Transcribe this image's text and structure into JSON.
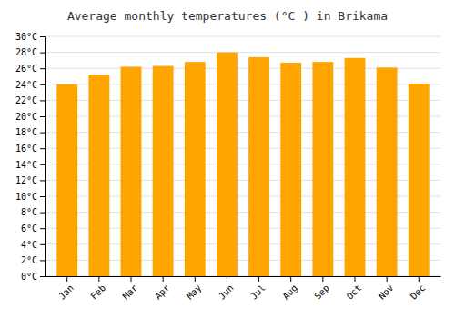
{
  "chart_data": {
    "type": "bar",
    "title": "Average monthly temperatures (°C ) in Brikama",
    "categories": [
      "Jan",
      "Feb",
      "Mar",
      "Apr",
      "May",
      "Jun",
      "Jul",
      "Aug",
      "Sep",
      "Oct",
      "Nov",
      "Dec"
    ],
    "values": [
      24.0,
      25.2,
      26.2,
      26.3,
      26.8,
      28.0,
      27.4,
      26.7,
      26.8,
      27.3,
      26.1,
      24.1
    ],
    "color": "#FFA500",
    "ylim": [
      0,
      30
    ],
    "yticks": [
      {
        "value": 0,
        "label": "0°C"
      },
      {
        "value": 2,
        "label": "2°C"
      },
      {
        "value": 4,
        "label": "4°C"
      },
      {
        "value": 6,
        "label": "6°C"
      },
      {
        "value": 8,
        "label": "8°C"
      },
      {
        "value": 10,
        "label": "10°C"
      },
      {
        "value": 12,
        "label": "12°C"
      },
      {
        "value": 14,
        "label": "14°C"
      },
      {
        "value": 16,
        "label": "16°C"
      },
      {
        "value": 18,
        "label": "18°C"
      },
      {
        "value": 20,
        "label": "20°C"
      },
      {
        "value": 22,
        "label": "22°C"
      },
      {
        "value": 24,
        "label": "24°C"
      },
      {
        "value": 26,
        "label": "26°C"
      },
      {
        "value": 28,
        "label": "28°C"
      },
      {
        "value": 30,
        "label": "30°C"
      }
    ],
    "grid": true
  }
}
